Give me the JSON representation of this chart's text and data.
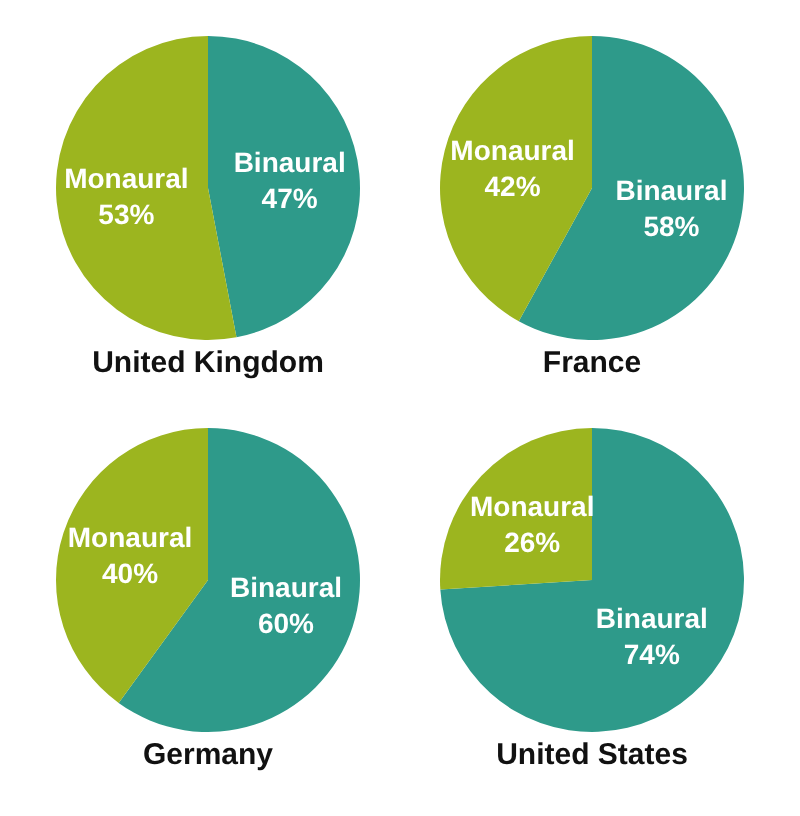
{
  "chart_data": [
    {
      "type": "pie",
      "title": "United Kingdom",
      "categories": [
        "Binaural",
        "Monaural"
      ],
      "values": [
        47,
        53
      ],
      "colors": [
        "#2e9a8a",
        "#9cb51f"
      ],
      "value_labels": [
        "47%",
        "53%"
      ]
    },
    {
      "type": "pie",
      "title": "France",
      "categories": [
        "Binaural",
        "Monaural"
      ],
      "values": [
        58,
        42
      ],
      "colors": [
        "#2e9a8a",
        "#9cb51f"
      ],
      "value_labels": [
        "58%",
        "42%"
      ]
    },
    {
      "type": "pie",
      "title": "Germany",
      "categories": [
        "Binaural",
        "Monaural"
      ],
      "values": [
        60,
        40
      ],
      "colors": [
        "#2e9a8a",
        "#9cb51f"
      ],
      "value_labels": [
        "60%",
        "40%"
      ]
    },
    {
      "type": "pie",
      "title": "United States",
      "categories": [
        "Binaural",
        "Monaural"
      ],
      "values": [
        74,
        26
      ],
      "colors": [
        "#2e9a8a",
        "#9cb51f"
      ],
      "value_labels": [
        "74%",
        "26%"
      ]
    }
  ]
}
